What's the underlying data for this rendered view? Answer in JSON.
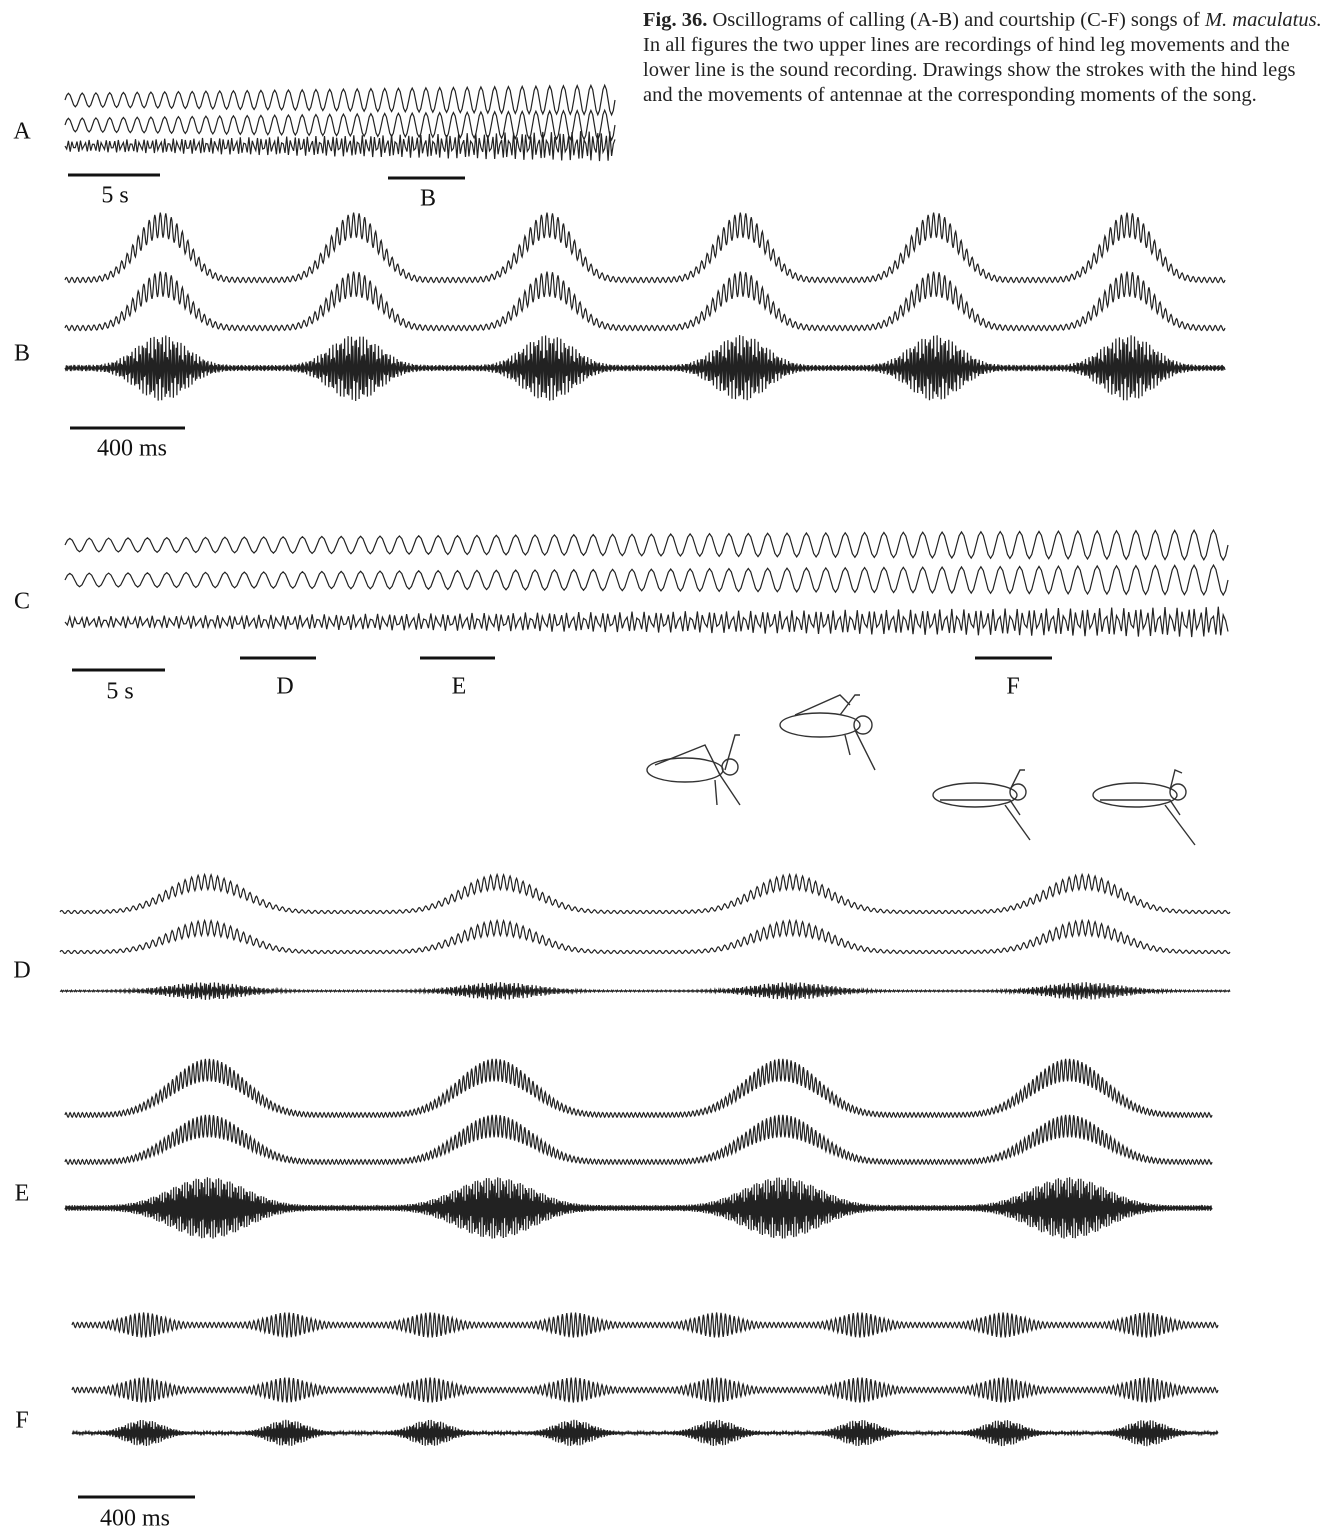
{
  "caption": {
    "label": "Fig. 36.",
    "text": "Oscillograms of calling (A-B) and courtship (C-F) songs of",
    "species": "M. maculatus.",
    "rest": "In all figures the two upper lines are recordings of hind leg movements and the lower line is the sound recording. Drawings show the strokes with the hind legs and the movements of antennae at the corresponding moments of the song."
  },
  "panels": [
    {
      "label": "A",
      "scale_bars": [
        "5 s",
        "B"
      ]
    },
    {
      "label": "B",
      "scale_bars": [
        "400 ms"
      ]
    },
    {
      "label": "C",
      "scale_bars": [
        "5 s",
        "D",
        "E",
        "F"
      ]
    },
    {
      "label": "D",
      "scale_bars": []
    },
    {
      "label": "E",
      "scale_bars": []
    },
    {
      "label": "F",
      "scale_bars": [
        "400 ms"
      ]
    }
  ]
}
